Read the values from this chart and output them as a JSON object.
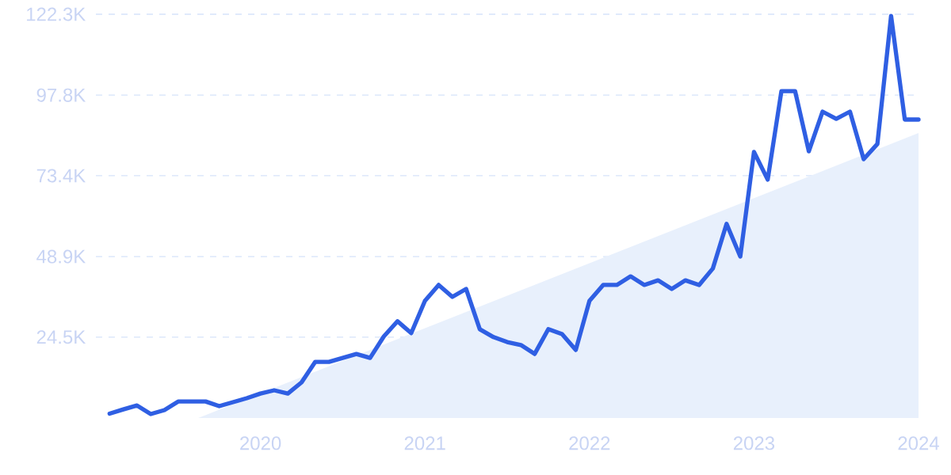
{
  "chart_data": {
    "type": "line",
    "x": [
      "2019-02",
      "2019-03",
      "2019-04",
      "2019-05",
      "2019-06",
      "2019-07",
      "2019-08",
      "2019-09",
      "2019-10",
      "2019-11",
      "2019-12",
      "2020-01",
      "2020-02",
      "2020-03",
      "2020-04",
      "2020-05",
      "2020-06",
      "2020-07",
      "2020-08",
      "2020-09",
      "2020-10",
      "2020-11",
      "2020-12",
      "2021-01",
      "2021-02",
      "2021-03",
      "2021-04",
      "2021-05",
      "2021-06",
      "2021-07",
      "2021-08",
      "2021-09",
      "2021-10",
      "2021-11",
      "2021-12",
      "2022-01",
      "2022-02",
      "2022-03",
      "2022-04",
      "2022-05",
      "2022-06",
      "2022-07",
      "2022-08",
      "2022-09",
      "2022-10",
      "2022-11",
      "2022-12",
      "2023-01",
      "2023-02",
      "2023-03",
      "2023-04",
      "2023-05",
      "2023-06",
      "2023-07",
      "2023-08",
      "2023-09",
      "2023-10",
      "2023-11",
      "2023-12",
      "2024-01"
    ],
    "series": [
      {
        "type": "area",
        "color": "#e8f0fc",
        "x": [
          "2019-08-15",
          "2024-01"
        ],
        "values": [
          0,
          86.3
        ]
      },
      {
        "color": "#2f5fe3",
        "values": [
          1.3,
          2.6,
          3.8,
          1.2,
          2.4,
          5.0,
          5.0,
          5.0,
          3.6,
          4.8,
          6.0,
          7.4,
          8.4,
          7.4,
          10.8,
          17.0,
          17.0,
          18.2,
          19.4,
          18.2,
          24.7,
          29.3,
          25.7,
          35.5,
          40.3,
          36.7,
          39.1,
          26.9,
          24.5,
          23.0,
          22.1,
          19.4,
          26.9,
          25.4,
          20.6,
          35.5,
          40.3,
          40.3,
          42.9,
          40.3,
          41.7,
          39.1,
          41.7,
          40.3,
          45.3,
          58.8,
          48.9,
          80.6,
          72.2,
          99.0,
          99.0,
          80.8,
          92.8,
          90.6,
          92.8,
          78.4,
          83.0,
          121.8,
          90.4,
          90.4
        ]
      }
    ],
    "xlim": [
      "2019-01",
      "2024-01"
    ],
    "xticks": [
      "2020",
      "2021",
      "2022",
      "2023",
      "2024"
    ],
    "ylim": [
      0,
      122.3
    ],
    "yticks": [
      {
        "value": 24.5,
        "label": "24.5K"
      },
      {
        "value": 48.9,
        "label": "48.9K"
      },
      {
        "value": 73.4,
        "label": "73.4K"
      },
      {
        "value": 97.8,
        "label": "97.8K"
      },
      {
        "value": 122.3,
        "label": "122.3K"
      }
    ],
    "grid": "y",
    "line_style": "solid",
    "marker": "none"
  }
}
